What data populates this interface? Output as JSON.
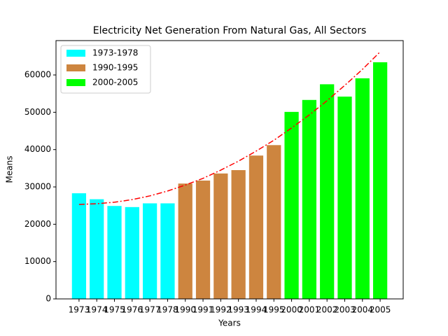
{
  "chart_data": {
    "type": "bar",
    "title": "Electricity Net Generation From Natural Gas, All Sectors",
    "xlabel": "Years",
    "ylabel": "Means",
    "categories": [
      "1973",
      "1974",
      "1975",
      "1976",
      "1977",
      "1978",
      "1990",
      "1991",
      "1992",
      "1993",
      "1994",
      "1995",
      "2000",
      "2001",
      "2002",
      "2003",
      "2004",
      "2005"
    ],
    "series": [
      {
        "name": "1973-1978",
        "color": "#00ffff",
        "values": [
          28300,
          26700,
          24900,
          24600,
          25600,
          25600,
          null,
          null,
          null,
          null,
          null,
          null,
          null,
          null,
          null,
          null,
          null,
          null
        ]
      },
      {
        "name": "1990-1995",
        "color": "#cd853f",
        "values": [
          null,
          null,
          null,
          null,
          null,
          null,
          30900,
          31700,
          33600,
          34500,
          38400,
          41200,
          null,
          null,
          null,
          null,
          null,
          null
        ]
      },
      {
        "name": "2000-2005",
        "color": "#00ff00",
        "values": [
          null,
          null,
          null,
          null,
          null,
          null,
          null,
          null,
          null,
          null,
          null,
          null,
          50100,
          53300,
          57500,
          54200,
          59100,
          63400
        ]
      }
    ],
    "trend": {
      "color": "#ff0000",
      "values": [
        25300,
        25500,
        25900,
        26600,
        27600,
        28900,
        30500,
        32300,
        34500,
        36900,
        39600,
        42500,
        45800,
        49300,
        53100,
        57200,
        61500,
        66200
      ]
    },
    "ylim": [
      0,
      69200
    ],
    "yticks": [
      0,
      10000,
      20000,
      30000,
      40000,
      50000,
      60000
    ],
    "legend": "upper left"
  }
}
